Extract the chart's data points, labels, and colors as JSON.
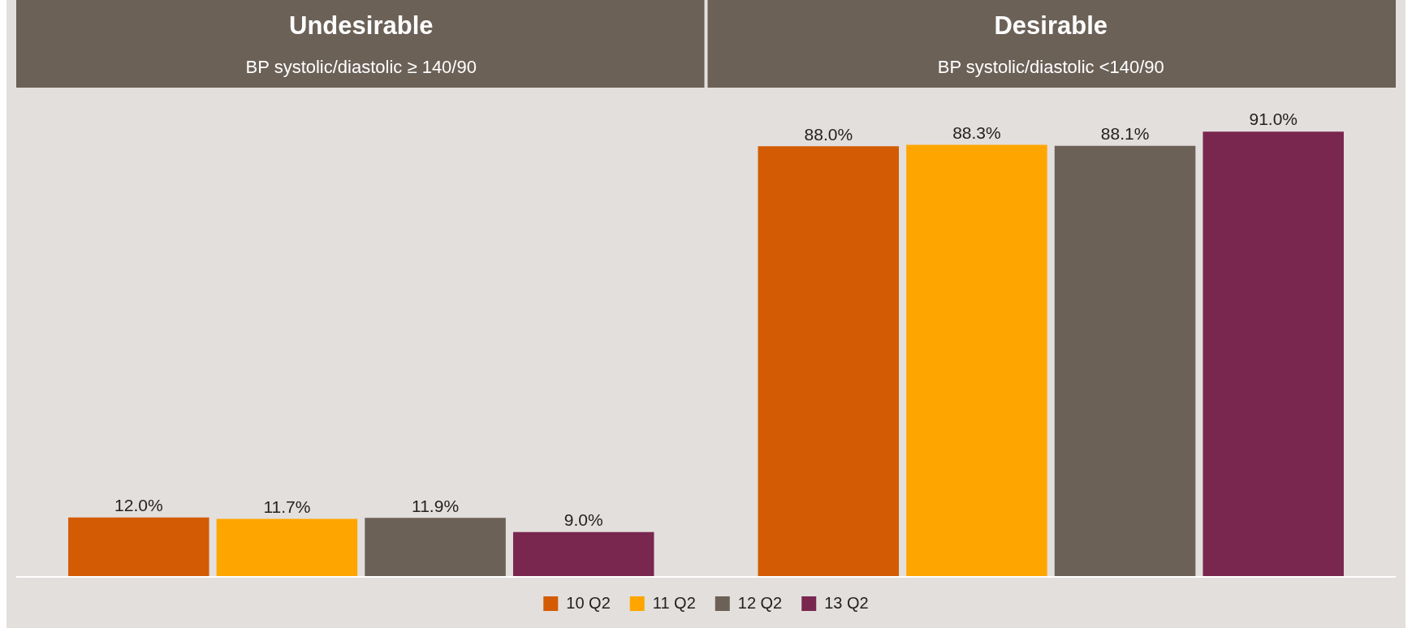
{
  "chart_data": {
    "type": "bar",
    "categories": [
      "Undesirable",
      "Desirable"
    ],
    "series": [
      {
        "name": "10 Q2",
        "color": "#d35b04",
        "values": [
          12.0,
          88.0
        ],
        "value_labels": [
          "12.0%",
          "88.0%"
        ]
      },
      {
        "name": "11 Q2",
        "color": "#ffa500",
        "values": [
          11.7,
          88.3
        ],
        "value_labels": [
          "11.7%",
          "88.3%"
        ]
      },
      {
        "name": "12 Q2",
        "color": "#6b6157",
        "values": [
          11.9,
          88.1
        ],
        "value_labels": [
          "11.9%",
          "88.1%"
        ]
      },
      {
        "name": "13 Q2",
        "color": "#7a2750",
        "values": [
          9.0,
          91.0
        ],
        "value_labels": [
          "9.0%",
          "91.0%"
        ]
      }
    ],
    "annotations": [
      "BP systolic/diastolic ≥ 140/90",
      "BP systolic/diastolic <140/90"
    ],
    "grid": false,
    "legend": "bottom"
  }
}
